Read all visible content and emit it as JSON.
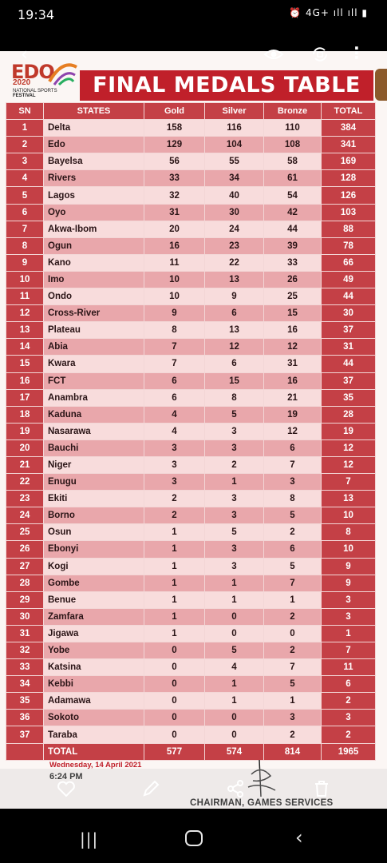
{
  "status_bar": {
    "time": "19:34",
    "icons": "⏰ 4G+ ıll ıll ▮"
  },
  "viewer": {
    "back_glyph": "‹",
    "more_glyph": "⋮",
    "icons": [
      "back-icon",
      "eye-icon",
      "rotate-icon",
      "more-icon"
    ]
  },
  "header": {
    "logo_main": "EDO",
    "logo_year": "2020",
    "logo_sub": "NATIONAL SPORTS",
    "logo_festival": "FESTIVAL",
    "title": "FINAL MEDALS TABLE"
  },
  "table": {
    "columns": [
      "SN",
      "STATES",
      "Gold",
      "Silver",
      "Bronze",
      "TOTAL"
    ],
    "rows": [
      [
        "1",
        "Delta",
        "158",
        "116",
        "110",
        "384"
      ],
      [
        "2",
        "Edo",
        "129",
        "104",
        "108",
        "341"
      ],
      [
        "3",
        "Bayelsa",
        "56",
        "55",
        "58",
        "169"
      ],
      [
        "4",
        "Rivers",
        "33",
        "34",
        "61",
        "128"
      ],
      [
        "5",
        "Lagos",
        "32",
        "40",
        "54",
        "126"
      ],
      [
        "6",
        "Oyo",
        "31",
        "30",
        "42",
        "103"
      ],
      [
        "7",
        "Akwa-Ibom",
        "20",
        "24",
        "44",
        "88"
      ],
      [
        "8",
        "Ogun",
        "16",
        "23",
        "39",
        "78"
      ],
      [
        "9",
        "Kano",
        "11",
        "22",
        "33",
        "66"
      ],
      [
        "10",
        "Imo",
        "10",
        "13",
        "26",
        "49"
      ],
      [
        "11",
        "Ondo",
        "10",
        "9",
        "25",
        "44"
      ],
      [
        "12",
        "Cross-River",
        "9",
        "6",
        "15",
        "30"
      ],
      [
        "13",
        "Plateau",
        "8",
        "13",
        "16",
        "37"
      ],
      [
        "14",
        "Abia",
        "7",
        "12",
        "12",
        "31"
      ],
      [
        "15",
        "Kwara",
        "7",
        "6",
        "31",
        "44"
      ],
      [
        "16",
        "FCT",
        "6",
        "15",
        "16",
        "37"
      ],
      [
        "17",
        "Anambra",
        "6",
        "8",
        "21",
        "35"
      ],
      [
        "18",
        "Kaduna",
        "4",
        "5",
        "19",
        "28"
      ],
      [
        "19",
        "Nasarawa",
        "4",
        "3",
        "12",
        "19"
      ],
      [
        "20",
        "Bauchi",
        "3",
        "3",
        "6",
        "12"
      ],
      [
        "21",
        "Niger",
        "3",
        "2",
        "7",
        "12"
      ],
      [
        "22",
        "Enugu",
        "3",
        "1",
        "3",
        "7"
      ],
      [
        "23",
        "Ekiti",
        "2",
        "3",
        "8",
        "13"
      ],
      [
        "24",
        "Borno",
        "2",
        "3",
        "5",
        "10"
      ],
      [
        "25",
        "Osun",
        "1",
        "5",
        "2",
        "8"
      ],
      [
        "26",
        "Ebonyi",
        "1",
        "3",
        "6",
        "10"
      ],
      [
        "27",
        "Kogi",
        "1",
        "3",
        "5",
        "9"
      ],
      [
        "28",
        "Gombe",
        "1",
        "1",
        "7",
        "9"
      ],
      [
        "29",
        "Benue",
        "1",
        "1",
        "1",
        "3"
      ],
      [
        "30",
        "Zamfara",
        "1",
        "0",
        "2",
        "3"
      ],
      [
        "31",
        "Jigawa",
        "1",
        "0",
        "0",
        "1"
      ],
      [
        "32",
        "Yobe",
        "0",
        "5",
        "2",
        "7"
      ],
      [
        "33",
        "Katsina",
        "0",
        "4",
        "7",
        "11"
      ],
      [
        "34",
        "Kebbi",
        "0",
        "1",
        "5",
        "6"
      ],
      [
        "35",
        "Adamawa",
        "0",
        "1",
        "1",
        "2"
      ],
      [
        "36",
        "Sokoto",
        "0",
        "0",
        "3",
        "3"
      ],
      [
        "37",
        "Taraba",
        "0",
        "0",
        "2",
        "2"
      ]
    ],
    "total": [
      "",
      "TOTAL",
      "577",
      "574",
      "814",
      "1965"
    ]
  },
  "footer": {
    "date": "Wednesday, 14 April 2021",
    "time": "6:24 PM",
    "signatory": "CHAIRMAN, GAMES SERVICES"
  },
  "action_bar": {
    "icons": [
      "favorite-icon",
      "edit-icon",
      "share-icon",
      "delete-icon"
    ]
  },
  "nav_bar": {
    "recent_glyph": "|||",
    "back_glyph": "‹"
  },
  "colors": {
    "header_red": "#c0202a",
    "cell_red": "#c44046",
    "row_light": "#f8dcdc",
    "row_dark": "#e9a7ab"
  }
}
